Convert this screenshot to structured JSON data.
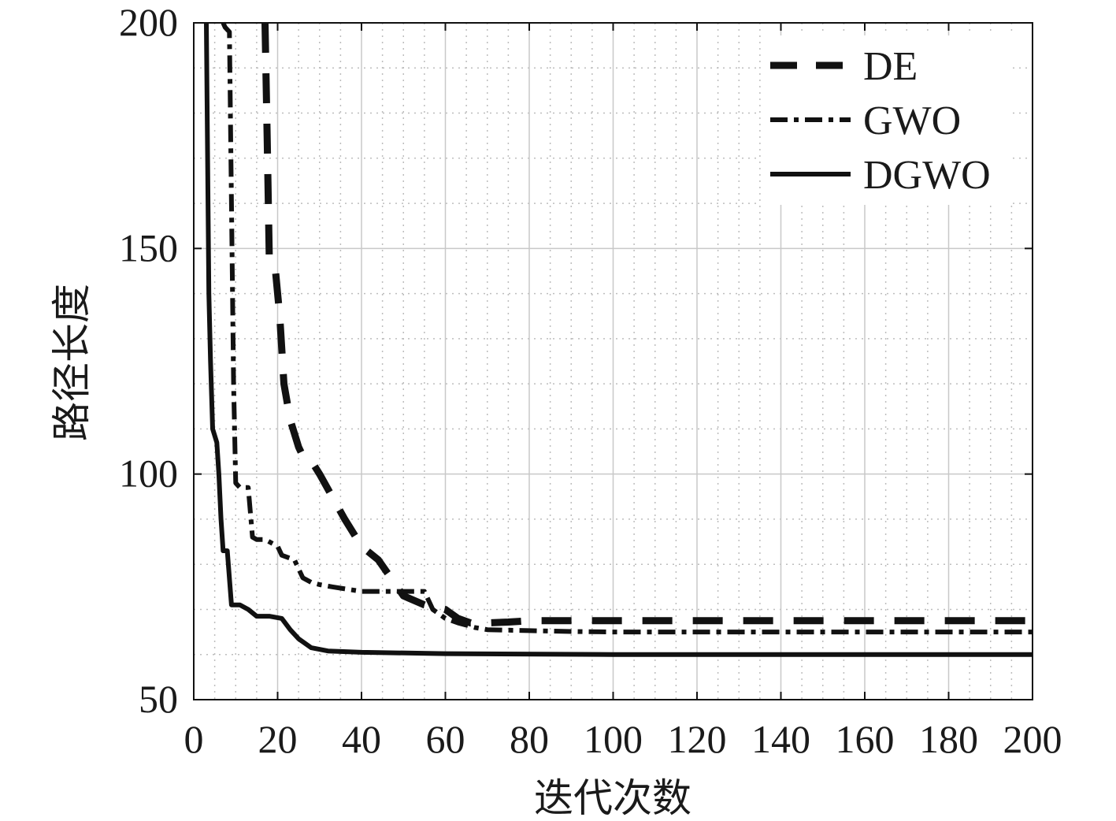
{
  "chart_data": {
    "type": "line",
    "xlabel": "迭代次数",
    "ylabel": "路径长度",
    "xlim": [
      0,
      200
    ],
    "ylim": [
      50,
      200
    ],
    "x_ticks": [
      0,
      20,
      40,
      60,
      80,
      100,
      120,
      140,
      160,
      180,
      200
    ],
    "y_ticks": [
      50,
      100,
      150,
      200
    ],
    "grid": true,
    "minor_grid": true,
    "legend_position": "top-right",
    "series": [
      {
        "name": "DE",
        "style": "dashed",
        "color": "#111111",
        "points": [
          [
            17,
            200
          ],
          [
            17.5,
            175
          ],
          [
            18,
            148
          ],
          [
            19.5,
            145
          ],
          [
            20.5,
            135
          ],
          [
            21.5,
            120
          ],
          [
            23,
            112
          ],
          [
            25,
            106
          ],
          [
            26,
            104
          ],
          [
            28,
            103
          ],
          [
            30,
            100
          ],
          [
            33,
            95
          ],
          [
            36,
            90
          ],
          [
            40,
            84
          ],
          [
            44,
            81
          ],
          [
            47,
            77
          ],
          [
            50,
            73
          ],
          [
            55,
            71
          ],
          [
            60,
            70
          ],
          [
            63,
            68
          ],
          [
            66,
            67
          ],
          [
            70,
            67
          ],
          [
            75,
            67.2
          ],
          [
            80,
            67.5
          ],
          [
            200,
            67.5
          ]
        ]
      },
      {
        "name": "GWO",
        "style": "dash-dot",
        "color": "#111111",
        "points": [
          [
            7,
            200
          ],
          [
            7.5,
            199
          ],
          [
            8.5,
            198
          ],
          [
            9,
            160
          ],
          [
            9.5,
            120
          ],
          [
            10,
            98
          ],
          [
            11,
            97
          ],
          [
            13,
            97
          ],
          [
            14,
            86
          ],
          [
            15,
            85.5
          ],
          [
            17,
            85.5
          ],
          [
            20,
            84
          ],
          [
            21,
            82
          ],
          [
            24,
            81
          ],
          [
            26,
            77
          ],
          [
            28,
            76
          ],
          [
            30,
            75.5
          ],
          [
            33,
            75
          ],
          [
            40,
            74
          ],
          [
            50,
            74
          ],
          [
            55,
            74
          ],
          [
            57,
            70
          ],
          [
            60,
            68
          ],
          [
            63,
            67
          ],
          [
            67,
            66
          ],
          [
            70,
            65.5
          ],
          [
            80,
            65.3
          ],
          [
            90,
            65.1
          ],
          [
            100,
            65
          ],
          [
            200,
            65
          ]
        ]
      },
      {
        "name": "DGWO",
        "style": "solid",
        "color": "#111111",
        "points": [
          [
            3,
            200
          ],
          [
            3.3,
            170
          ],
          [
            3.6,
            140
          ],
          [
            4,
            125
          ],
          [
            4.5,
            110
          ],
          [
            5.5,
            107
          ],
          [
            6,
            100
          ],
          [
            6.5,
            90
          ],
          [
            7,
            83
          ],
          [
            8,
            83
          ],
          [
            9,
            71
          ],
          [
            11,
            71
          ],
          [
            13,
            70
          ],
          [
            15,
            68.5
          ],
          [
            18,
            68.5
          ],
          [
            21,
            68
          ],
          [
            23,
            65.5
          ],
          [
            25,
            63.5
          ],
          [
            28,
            61.5
          ],
          [
            32,
            60.8
          ],
          [
            40,
            60.5
          ],
          [
            60,
            60.2
          ],
          [
            100,
            60
          ],
          [
            200,
            60
          ]
        ]
      }
    ]
  }
}
